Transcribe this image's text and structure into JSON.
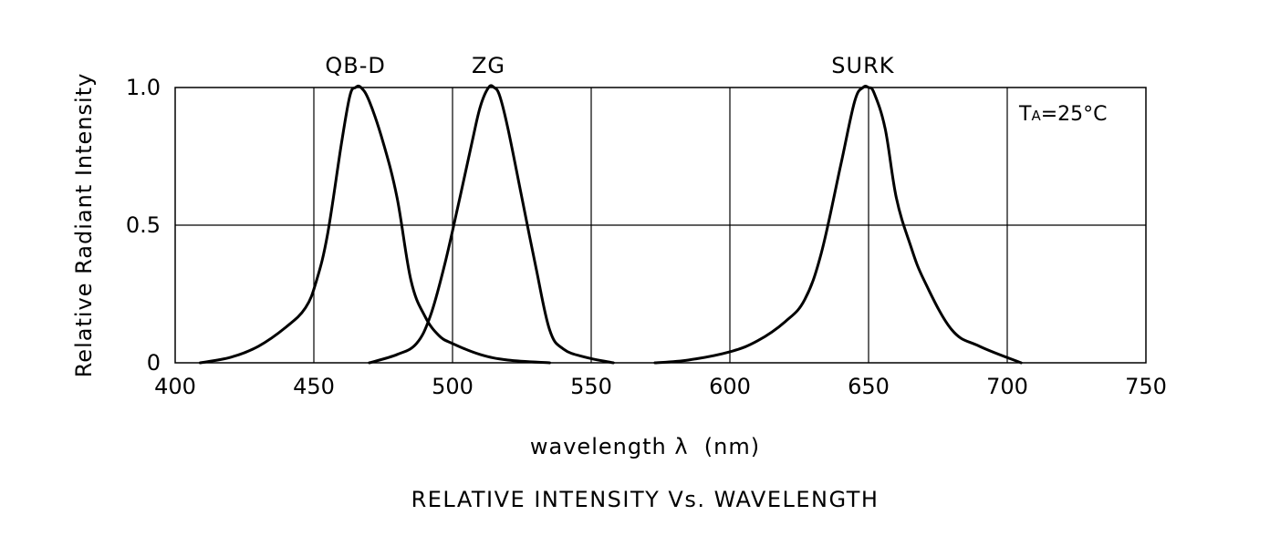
{
  "chart_data": {
    "type": "line",
    "title": "RELATIVE INTENSITY Vs. WAVELENGTH",
    "xlabel": "wavelength λ  (nm)",
    "ylabel": "Relative Radiant Intensity",
    "xlim": [
      400,
      750
    ],
    "ylim": [
      0,
      1.0
    ],
    "x_ticks": [
      "400",
      "450",
      "500",
      "550",
      "600",
      "650",
      "700",
      "750"
    ],
    "y_ticks": [
      "0",
      "0.5",
      "1.0"
    ],
    "grid": true,
    "annotation": {
      "main": "T",
      "sub": "A",
      "rest": "=25°C"
    },
    "series": [
      {
        "name": "QB-D",
        "x": [
          409,
          420,
          430,
          440,
          447,
          451,
          455,
          460,
          463,
          465,
          467,
          470,
          475,
          480,
          485,
          490,
          495,
          500,
          510,
          520,
          535
        ],
        "y": [
          0.0,
          0.02,
          0.06,
          0.13,
          0.2,
          0.3,
          0.47,
          0.8,
          0.97,
          1.0,
          1.0,
          0.95,
          0.8,
          0.6,
          0.3,
          0.17,
          0.1,
          0.07,
          0.03,
          0.01,
          0.0
        ]
      },
      {
        "name": "ZG",
        "x": [
          470,
          480,
          487,
          492,
          497,
          502,
          507,
          510,
          513,
          515,
          517,
          520,
          525,
          530,
          535,
          540,
          548,
          558
        ],
        "y": [
          0.0,
          0.03,
          0.07,
          0.17,
          0.35,
          0.57,
          0.8,
          0.93,
          1.0,
          1.0,
          0.97,
          0.85,
          0.6,
          0.35,
          0.12,
          0.05,
          0.02,
          0.0
        ]
      },
      {
        "name": "SURK",
        "x": [
          573,
          585,
          600,
          610,
          620,
          627,
          633,
          640,
          645,
          648,
          650,
          652,
          656,
          660,
          665,
          670,
          680,
          690,
          705
        ],
        "y": [
          0.0,
          0.01,
          0.04,
          0.08,
          0.15,
          0.23,
          0.4,
          0.72,
          0.95,
          1.0,
          1.0,
          0.98,
          0.85,
          0.6,
          0.43,
          0.3,
          0.12,
          0.06,
          0.0
        ]
      }
    ]
  }
}
